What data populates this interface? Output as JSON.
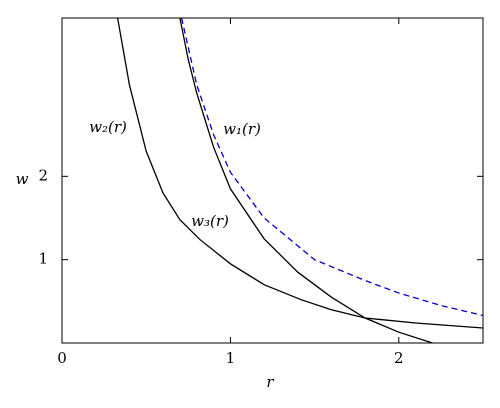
{
  "chart_data": {
    "type": "line",
    "x_label": "r",
    "y_label": "w",
    "xlim": [
      0,
      2.5
    ],
    "ylim": [
      0,
      3.9
    ],
    "xticks": [
      0,
      1,
      2
    ],
    "yticks": [
      1,
      2
    ],
    "series": [
      {
        "name": "w₁(r)",
        "color": "#0000cc",
        "style": "dashed",
        "x": [
          0.71,
          0.8,
          0.9,
          1.0,
          1.2,
          1.5,
          1.8,
          2.0,
          2.25,
          2.5
        ],
        "values": [
          3.9,
          3.1,
          2.5,
          2.05,
          1.5,
          1.0,
          0.75,
          0.6,
          0.45,
          0.33
        ]
      },
      {
        "name": "w₂(r)",
        "color": "#000000",
        "style": "solid",
        "x": [
          0.33,
          0.4,
          0.5,
          0.6,
          0.7,
          0.82,
          1.0,
          1.2,
          1.42,
          1.6,
          1.8,
          2.1,
          2.5
        ],
        "values": [
          3.9,
          3.1,
          2.3,
          1.8,
          1.48,
          1.24,
          0.95,
          0.7,
          0.52,
          0.4,
          0.3,
          0.24,
          0.18
        ]
      },
      {
        "name": "w₃(r)",
        "color": "#000000",
        "style": "solid",
        "x": [
          0.7,
          0.75,
          0.8,
          0.9,
          1.0,
          1.2,
          1.4,
          1.6,
          1.8,
          2.0,
          2.2
        ],
        "values": [
          3.9,
          3.4,
          3.0,
          2.35,
          1.85,
          1.25,
          0.85,
          0.55,
          0.3,
          0.13,
          0
        ]
      }
    ]
  }
}
